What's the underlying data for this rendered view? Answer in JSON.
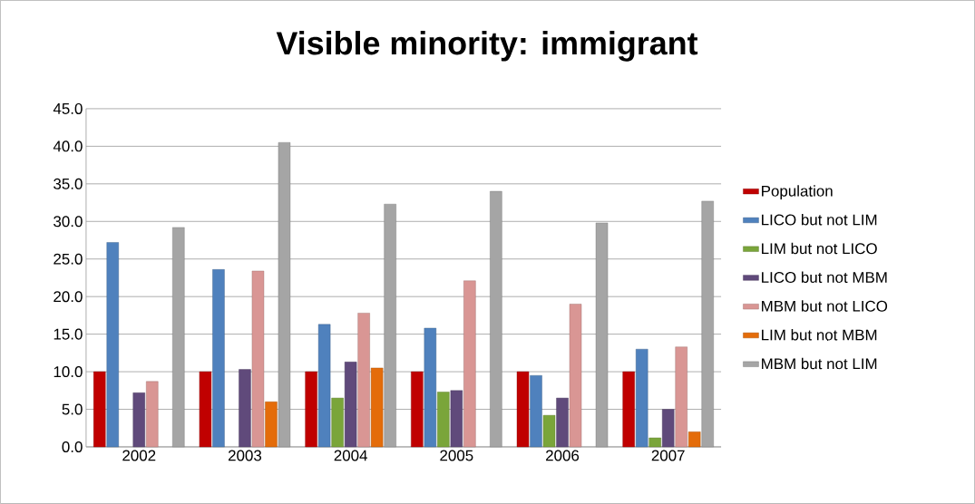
{
  "chart_data": {
    "type": "bar",
    "title": "Visible minority: immigrant",
    "categories": [
      "2002",
      "2003",
      "2004",
      "2005",
      "2006",
      "2007"
    ],
    "series": [
      {
        "name": "Population",
        "color": "#c00000",
        "values": [
          10.0,
          10.0,
          10.0,
          10.0,
          10.0,
          10.0
        ]
      },
      {
        "name": "LICO but not LIM",
        "color": "#4f81bd",
        "values": [
          27.2,
          23.6,
          16.3,
          15.8,
          9.5,
          13.0
        ]
      },
      {
        "name": "LIM but not LICO",
        "color": "#7aa53a",
        "values": [
          null,
          null,
          6.5,
          7.3,
          4.2,
          1.2
        ]
      },
      {
        "name": "LICO but not MBM",
        "color": "#604a7b",
        "values": [
          7.2,
          10.3,
          11.3,
          7.5,
          6.5,
          5.0
        ]
      },
      {
        "name": "MBM but not LICO",
        "color": "#d99694",
        "values": [
          8.7,
          23.4,
          17.8,
          22.1,
          19.0,
          13.3
        ]
      },
      {
        "name": "LIM but not MBM",
        "color": "#e46c0a",
        "values": [
          null,
          6.0,
          10.5,
          null,
          null,
          2.0
        ]
      },
      {
        "name": "MBM but not LIM",
        "color": "#a5a5a5",
        "values": [
          29.2,
          40.5,
          32.3,
          34.0,
          29.8,
          32.7
        ]
      }
    ],
    "ylim": [
      0,
      45
    ],
    "yticks": [
      {
        "value": 0,
        "label": "0.0"
      },
      {
        "value": 5,
        "label": "5.0"
      },
      {
        "value": 10,
        "label": "10.0"
      },
      {
        "value": 15,
        "label": "15.0"
      },
      {
        "value": 20,
        "label": "20.0"
      },
      {
        "value": 25,
        "label": "25.0"
      },
      {
        "value": 30,
        "label": "30.0"
      },
      {
        "value": 35,
        "label": "35.0"
      },
      {
        "value": 40,
        "label": "40.0"
      },
      {
        "value": 45,
        "label": "45.0"
      }
    ],
    "grid": "y",
    "legend": "right"
  }
}
